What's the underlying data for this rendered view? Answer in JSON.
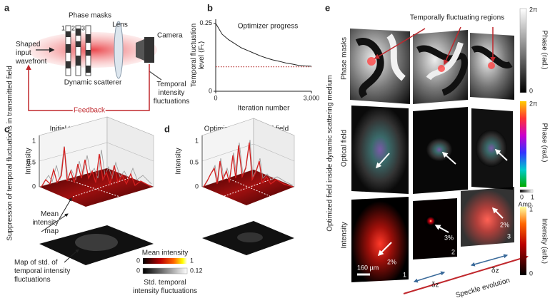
{
  "panel_labels": [
    "a",
    "b",
    "c",
    "d",
    "e"
  ],
  "side_label": "Suppression of temporal fluctuations in transmitted field",
  "panel_a": {
    "phase_masks": "Phase masks",
    "mask_numbers": [
      "1",
      "2",
      "3"
    ],
    "lens": "Lens",
    "camera": "Camera",
    "input": [
      "Shaped",
      "input",
      "wavefront"
    ],
    "scatterer": "Dynamic scatterer",
    "output": [
      "Temporal",
      "intensity",
      "fluctuations"
    ],
    "feedback": "Feedback"
  },
  "chart_data": {
    "type": "line",
    "annotation": "Optimizer progress",
    "xlabel": "Iteration number",
    "ylabel": [
      "Temporal fluctuation",
      "level ⟨Fₜ⟩"
    ],
    "x": [
      0,
      200,
      400,
      600,
      800,
      1000,
      1200,
      1400,
      1600,
      1800,
      2000,
      2200,
      2400,
      2600,
      2800,
      3000
    ],
    "series": [
      {
        "color": "#222222",
        "values": [
          0.25,
          0.21,
          0.19,
          0.175,
          0.16,
          0.15,
          0.14,
          0.13,
          0.122,
          0.115,
          0.11,
          0.104,
          0.1,
          0.095,
          0.093,
          0.092
        ]
      }
    ],
    "reference_line": {
      "value": 0.09,
      "color": "#b22222"
    },
    "xlim": [
      0,
      3000
    ],
    "ylim": [
      0,
      0.265
    ],
    "xticks": [
      0,
      {
        "value": 3000,
        "label": "3,000"
      }
    ],
    "yticks": [
      0,
      0.25
    ]
  },
  "panel_c": {
    "title": "Initial transmitted field",
    "ylabel": "Intensity",
    "ticks": [
      1,
      0.5,
      0
    ],
    "map_label": [
      "Mean",
      "intensity",
      "map"
    ],
    "std_label": [
      "Map of std. of",
      "temporal intensity",
      "fluctuations"
    ],
    "mean_bar": {
      "label": "Mean intensity",
      "min": 0,
      "max": 1
    },
    "std_bar": {
      "label": [
        "Std. temporal",
        "intensity fluctuations"
      ],
      "min": 0,
      "max": 0.12
    }
  },
  "panel_d": {
    "title": "Optimized transmitted field",
    "ylabel": "Intensity",
    "ticks": [
      1,
      0.5,
      0
    ]
  },
  "panel_e": {
    "side_label": "Optimized field inside dynamic scattering medium",
    "rows": [
      "Phase masks",
      "Optical field",
      "Intensity"
    ],
    "annotation": "Temporally fluctuating regions",
    "phase_bar": {
      "top": "2π",
      "bottom": "0",
      "label": "Phase (rad.)"
    },
    "field_bar": {
      "top": "2π",
      "bottom": "0",
      "amp_end": "1",
      "amp_label": "Amp.",
      "label": "Phase (rad.)"
    },
    "intensity_bar": {
      "top": "1",
      "bottom": "0",
      "label": "Intensity (arb.)"
    },
    "scale_bar": "160 µm",
    "percentages": [
      "2%",
      "3%",
      "2%"
    ],
    "tiles": [
      "1",
      "2",
      "3"
    ],
    "dz_labels": [
      "δz",
      "δz"
    ],
    "evolution": "Speckle evolution"
  }
}
